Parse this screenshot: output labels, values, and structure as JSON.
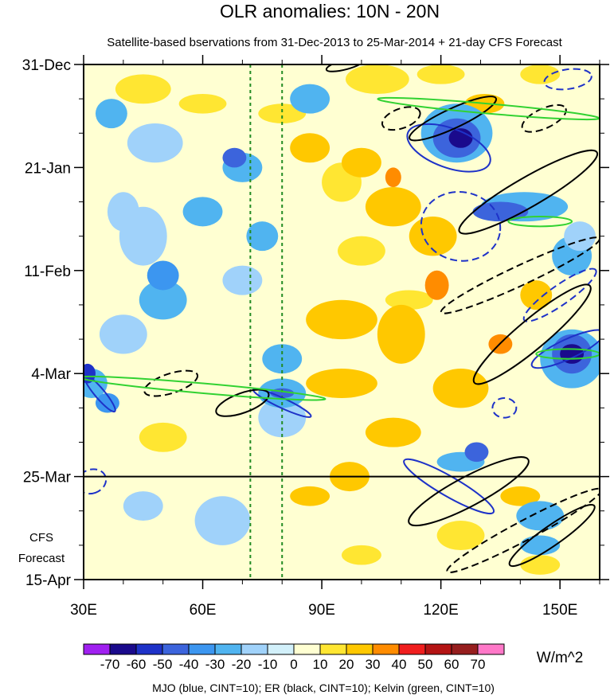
{
  "chart_data": {
    "type": "heatmap",
    "title": "OLR anomalies: 10N - 20N",
    "subtitle": "Satellite-based bservations from 31-Dec-2013 to 25-Mar-2014 + 21-day CFS Forecast",
    "xlabel": "",
    "ylabel": "",
    "x_range": [
      30,
      160
    ],
    "x_ticks": [
      {
        "value": 30,
        "label": "30E"
      },
      {
        "value": 60,
        "label": "60E"
      },
      {
        "value": 90,
        "label": "90E"
      },
      {
        "value": 120,
        "label": "120E"
      },
      {
        "value": 150,
        "label": "150E"
      }
    ],
    "y_range_days": [
      0,
      105
    ],
    "y_ticks": [
      {
        "day": 0,
        "label": "31-Dec"
      },
      {
        "day": 21,
        "label": "21-Jan"
      },
      {
        "day": 42,
        "label": "11-Feb"
      },
      {
        "day": 63,
        "label": "4-Mar"
      },
      {
        "day": 84,
        "label": "25-Mar"
      },
      {
        "day": 105,
        "label": "15-Apr"
      }
    ],
    "forecast_start_day": 84,
    "forecast_label": [
      "CFS",
      "Forecast"
    ],
    "reference_lons": [
      72,
      80
    ],
    "colorbar": {
      "units": "W/m^2",
      "levels": [
        "-70",
        "-60",
        "-50",
        "-40",
        "-30",
        "-20",
        "-10",
        "0",
        "10",
        "20",
        "30",
        "40",
        "50",
        "60",
        "70"
      ],
      "colors": [
        "#a020f0",
        "#1a0a8c",
        "#1e32c8",
        "#3c64dc",
        "#3c96f0",
        "#50b4f0",
        "#a0d2fa",
        "#d2f0fa",
        "#ffffd2",
        "#ffe632",
        "#ffc800",
        "#ff8c00",
        "#f01e1e",
        "#b41414",
        "#961e1e",
        "#ff78c8"
      ]
    },
    "anomaly_patches": [
      {
        "lon": 45,
        "day": 5,
        "rlon": 7,
        "rday": 3,
        "value": 15
      },
      {
        "lon": 60,
        "day": 8,
        "rlon": 6,
        "rday": 2,
        "value": 15
      },
      {
        "lon": 80,
        "day": 10,
        "rlon": 6,
        "rday": 2,
        "value": 15
      },
      {
        "lon": 104,
        "day": 3,
        "rlon": 8,
        "rday": 3,
        "value": 15
      },
      {
        "lon": 120,
        "day": 2,
        "rlon": 6,
        "rday": 2,
        "value": 15
      },
      {
        "lon": 145,
        "day": 2,
        "rlon": 5,
        "rday": 2,
        "value": 15
      },
      {
        "lon": 95,
        "day": 24,
        "rlon": 5,
        "rday": 4,
        "value": 15
      },
      {
        "lon": 100,
        "day": 38,
        "rlon": 6,
        "rday": 3,
        "value": 15
      },
      {
        "lon": 112,
        "day": 48,
        "rlon": 6,
        "rday": 2,
        "value": 15
      },
      {
        "lon": 50,
        "day": 76,
        "rlon": 6,
        "rday": 3,
        "value": 15
      },
      {
        "lon": 125,
        "day": 96,
        "rlon": 6,
        "rday": 3,
        "value": 15
      },
      {
        "lon": 100,
        "day": 100,
        "rlon": 5,
        "rday": 2,
        "value": 15
      },
      {
        "lon": 145,
        "day": 102,
        "rlon": 5,
        "rday": 2,
        "value": 15
      },
      {
        "lon": 87,
        "day": 17,
        "rlon": 5,
        "rday": 3,
        "value": 25
      },
      {
        "lon": 100,
        "day": 20,
        "rlon": 5,
        "rday": 3,
        "value": 25
      },
      {
        "lon": 108,
        "day": 29,
        "rlon": 7,
        "rday": 4,
        "value": 25
      },
      {
        "lon": 118,
        "day": 35,
        "rlon": 6,
        "rday": 4,
        "value": 25
      },
      {
        "lon": 95,
        "day": 52,
        "rlon": 9,
        "rday": 4,
        "value": 25
      },
      {
        "lon": 110,
        "day": 55,
        "rlon": 6,
        "rday": 6,
        "value": 25
      },
      {
        "lon": 95,
        "day": 65,
        "rlon": 9,
        "rday": 3,
        "value": 25
      },
      {
        "lon": 125,
        "day": 66,
        "rlon": 7,
        "rday": 4,
        "value": 25
      },
      {
        "lon": 108,
        "day": 75,
        "rlon": 7,
        "rday": 3,
        "value": 25
      },
      {
        "lon": 97,
        "day": 84,
        "rlon": 5,
        "rday": 3,
        "value": 25
      },
      {
        "lon": 87,
        "day": 88,
        "rlon": 5,
        "rday": 2,
        "value": 25
      },
      {
        "lon": 140,
        "day": 88,
        "rlon": 5,
        "rday": 2,
        "value": 25
      },
      {
        "lon": 131,
        "day": 8,
        "rlon": 5,
        "rday": 2,
        "value": 25
      },
      {
        "lon": 144,
        "day": 47,
        "rlon": 4,
        "rday": 3,
        "value": 25
      },
      {
        "lon": 119,
        "day": 45,
        "rlon": 3,
        "rday": 3,
        "value": 35
      },
      {
        "lon": 135,
        "day": 57,
        "rlon": 3,
        "rday": 2,
        "value": 35
      },
      {
        "lon": 108,
        "day": 23,
        "rlon": 2,
        "rday": 2,
        "value": 35
      },
      {
        "lon": 48,
        "day": 16,
        "rlon": 7,
        "rday": 4,
        "value": -15
      },
      {
        "lon": 45,
        "day": 35,
        "rlon": 6,
        "rday": 6,
        "value": -15
      },
      {
        "lon": 70,
        "day": 44,
        "rlon": 5,
        "rday": 3,
        "value": -15
      },
      {
        "lon": 40,
        "day": 55,
        "rlon": 6,
        "rday": 4,
        "value": -15
      },
      {
        "lon": 65,
        "day": 93,
        "rlon": 7,
        "rday": 5,
        "value": -15
      },
      {
        "lon": 80,
        "day": 72,
        "rlon": 6,
        "rday": 4,
        "value": -15
      },
      {
        "lon": 45,
        "day": 90,
        "rlon": 5,
        "rday": 3,
        "value": -15
      },
      {
        "lon": 40,
        "day": 30,
        "rlon": 4,
        "rday": 4,
        "value": -15
      },
      {
        "lon": 37,
        "day": 10,
        "rlon": 4,
        "rday": 3,
        "value": -25
      },
      {
        "lon": 60,
        "day": 30,
        "rlon": 5,
        "rday": 3,
        "value": -25
      },
      {
        "lon": 75,
        "day": 35,
        "rlon": 4,
        "rday": 3,
        "value": -25
      },
      {
        "lon": 50,
        "day": 48,
        "rlon": 6,
        "rday": 4,
        "value": -25
      },
      {
        "lon": 80,
        "day": 60,
        "rlon": 5,
        "rday": 3,
        "value": -25
      },
      {
        "lon": 50,
        "day": 43,
        "rlon": 4,
        "rday": 3,
        "value": -35
      },
      {
        "lon": 70,
        "day": 21,
        "rlon": 5,
        "rday": 3,
        "value": -25
      },
      {
        "lon": 68,
        "day": 19,
        "rlon": 3,
        "rday": 2,
        "value": -45
      },
      {
        "lon": 87,
        "day": 7,
        "rlon": 5,
        "rday": 3,
        "value": -25
      },
      {
        "lon": 124,
        "day": 14,
        "rlon": 9,
        "rday": 6,
        "value": -25
      },
      {
        "lon": 124,
        "day": 15,
        "rlon": 6,
        "rday": 4,
        "value": -45
      },
      {
        "lon": 125,
        "day": 15,
        "rlon": 3,
        "rday": 2,
        "value": -65
      },
      {
        "lon": 141,
        "day": 29,
        "rlon": 11,
        "rday": 3,
        "value": -25
      },
      {
        "lon": 135,
        "day": 30,
        "rlon": 7,
        "rday": 2,
        "value": -45
      },
      {
        "lon": 153,
        "day": 60,
        "rlon": 8,
        "rday": 6,
        "value": -25
      },
      {
        "lon": 153,
        "day": 59,
        "rlon": 5,
        "rday": 4,
        "value": -45
      },
      {
        "lon": 153,
        "day": 59,
        "rlon": 3,
        "rday": 2,
        "value": -65
      },
      {
        "lon": 32,
        "day": 65,
        "rlon": 4,
        "rday": 3,
        "value": -25
      },
      {
        "lon": 31,
        "day": 63,
        "rlon": 2,
        "rday": 2,
        "value": -55
      },
      {
        "lon": 36,
        "day": 69,
        "rlon": 3,
        "rday": 2,
        "value": -35
      },
      {
        "lon": 80,
        "day": 67,
        "rlon": 6,
        "rday": 3,
        "value": -25
      },
      {
        "lon": 80,
        "day": 67,
        "rlon": 3,
        "rday": 1,
        "value": -45
      },
      {
        "lon": 125,
        "day": 81,
        "rlon": 6,
        "rday": 2,
        "value": -25
      },
      {
        "lon": 129,
        "day": 79,
        "rlon": 3,
        "rday": 2,
        "value": -45
      },
      {
        "lon": 153,
        "day": 39,
        "rlon": 5,
        "rday": 4,
        "value": -25
      },
      {
        "lon": 145,
        "day": 92,
        "rlon": 6,
        "rday": 3,
        "value": -25
      },
      {
        "lon": 145,
        "day": 98,
        "rlon": 5,
        "rday": 2,
        "value": -25
      },
      {
        "lon": 155,
        "day": 35,
        "rlon": 4,
        "rday": 3,
        "value": -15
      }
    ],
    "contours": [
      {
        "group": "MJO",
        "color": "#1e32c8",
        "dashed": false,
        "lon": 122,
        "day": 17,
        "rlon": 11,
        "rday": 4,
        "angle_deg": 20
      },
      {
        "group": "MJO",
        "color": "#1e32c8",
        "dashed": true,
        "lon": 125,
        "day": 33,
        "rlon": 10,
        "rday": 7,
        "angle_deg": 10
      },
      {
        "group": "MJO",
        "color": "#1e32c8",
        "dashed": true,
        "lon": 152,
        "day": 3,
        "rlon": 6,
        "rday": 2,
        "angle_deg": -8
      },
      {
        "group": "MJO",
        "color": "#1e32c8",
        "dashed": true,
        "lon": 150,
        "day": 47,
        "rlon": 11,
        "rday": 2,
        "angle_deg": -35
      },
      {
        "group": "MJO",
        "color": "#1e32c8",
        "dashed": false,
        "lon": 152,
        "day": 58,
        "rlon": 10,
        "rday": 2,
        "angle_deg": -25
      },
      {
        "group": "MJO",
        "color": "#1e32c8",
        "dashed": false,
        "lon": 34,
        "day": 67,
        "rlon": 6,
        "rday": 1,
        "angle_deg": 50
      },
      {
        "group": "MJO",
        "color": "#1e32c8",
        "dashed": false,
        "lon": 80,
        "day": 69,
        "rlon": 8,
        "rday": 1,
        "angle_deg": 25
      },
      {
        "group": "MJO",
        "color": "#1e32c8",
        "dashed": false,
        "lon": 122,
        "day": 86,
        "rlon": 13,
        "rday": 2,
        "angle_deg": 30
      },
      {
        "group": "MJO",
        "color": "#1e32c8",
        "dashed": true,
        "lon": 136,
        "day": 70,
        "rlon": 3,
        "rday": 2,
        "angle_deg": 0
      },
      {
        "group": "MJO",
        "color": "#1e32c8",
        "dashed": true,
        "lon": 32,
        "day": 85,
        "rlon": 3,
        "rday": 3,
        "angle_deg": 70
      },
      {
        "group": "ER",
        "color": "#000000",
        "dashed": false,
        "lon": 123,
        "day": 11,
        "rlon": 12,
        "rday": 2,
        "angle_deg": -25
      },
      {
        "group": "ER",
        "color": "#000000",
        "dashed": true,
        "lon": 110,
        "day": 11,
        "rlon": 5,
        "rday": 2,
        "angle_deg": -20
      },
      {
        "group": "ER",
        "color": "#000000",
        "dashed": true,
        "lon": 146,
        "day": 11,
        "rlon": 6,
        "rday": 2,
        "angle_deg": -25
      },
      {
        "group": "ER",
        "color": "#000000",
        "dashed": false,
        "lon": 142,
        "day": 26,
        "rlon": 20,
        "rday": 3,
        "angle_deg": -30
      },
      {
        "group": "ER",
        "color": "#000000",
        "dashed": true,
        "lon": 140,
        "day": 43,
        "rlon": 22,
        "rday": 2,
        "angle_deg": -25
      },
      {
        "group": "ER",
        "color": "#000000",
        "dashed": false,
        "lon": 143,
        "day": 55,
        "rlon": 19,
        "rday": 3,
        "angle_deg": -40
      },
      {
        "group": "ER",
        "color": "#000000",
        "dashed": true,
        "lon": 52,
        "day": 65,
        "rlon": 7,
        "rday": 2,
        "angle_deg": -18
      },
      {
        "group": "ER",
        "color": "#000000",
        "dashed": false,
        "lon": 70,
        "day": 69,
        "rlon": 7,
        "rday": 2,
        "angle_deg": -20
      },
      {
        "group": "ER",
        "color": "#000000",
        "dashed": false,
        "lon": 127,
        "day": 87,
        "rlon": 17,
        "rday": 3,
        "angle_deg": -28
      },
      {
        "group": "ER",
        "color": "#000000",
        "dashed": true,
        "lon": 141,
        "day": 95,
        "rlon": 22,
        "rday": 2,
        "angle_deg": -28
      },
      {
        "group": "ER",
        "color": "#000000",
        "dashed": false,
        "lon": 148,
        "day": 96,
        "rlon": 13,
        "rday": 2,
        "angle_deg": -35
      },
      {
        "group": "ER",
        "color": "#000000",
        "dashed": false,
        "lon": 96,
        "day": 0,
        "rlon": 5,
        "rday": 1,
        "angle_deg": -15
      },
      {
        "group": "Kelvin",
        "color": "#32d232",
        "dashed": false,
        "lon": 132,
        "day": 9,
        "rlon": 28,
        "rday": 1,
        "angle_deg": 5
      },
      {
        "group": "Kelvin",
        "color": "#32d232",
        "dashed": false,
        "lon": 60,
        "day": 66,
        "rlon": 31,
        "rday": 1,
        "angle_deg": 5
      },
      {
        "group": "Kelvin",
        "color": "#32d232",
        "dashed": false,
        "lon": 152,
        "day": 59,
        "rlon": 8,
        "rday": 1,
        "angle_deg": 0
      },
      {
        "group": "Kelvin",
        "color": "#32d232",
        "dashed": false,
        "lon": 145,
        "day": 32,
        "rlon": 8,
        "rday": 1,
        "angle_deg": 0
      }
    ],
    "footer": "MJO (blue, CINT=10); ER (black, CINT=10); Kelvin (green, CINT=10)"
  }
}
